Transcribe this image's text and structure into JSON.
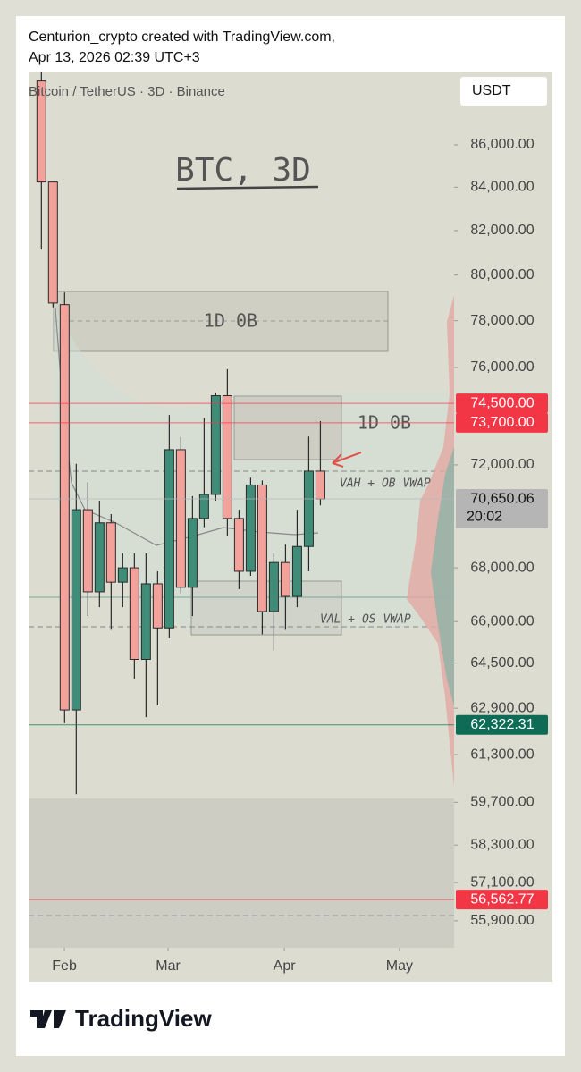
{
  "header": {
    "author_line": "Centurion_crypto created with TradingView.com,",
    "date_line": "Apr 13, 2026 02:39 UTC+3"
  },
  "footer": {
    "brand": "TradingView"
  },
  "chart_data": {
    "type": "candlestick",
    "title": "BTC, 3D",
    "symbol": "Bitcoin / TetherUS · 3D · Binance",
    "currency": "USDT",
    "annotations": [
      "1D 0B",
      "1D 0B",
      "VAH + OB VWAP",
      "VAL + OS VWAP"
    ],
    "x": [
      0,
      1,
      2,
      3,
      4,
      5,
      6,
      7,
      8,
      9,
      10,
      11,
      12,
      13,
      14,
      15,
      16,
      17,
      18,
      19,
      20,
      21,
      22,
      23,
      24
    ],
    "open": [
      89100,
      84240,
      78700,
      62840,
      70230,
      67100,
      69720,
      67460,
      68000,
      64630,
      67400,
      65770,
      72610,
      67270,
      69890,
      70830,
      74820,
      69890,
      67870,
      71200,
      66370,
      68200,
      66930,
      68810,
      71750
    ],
    "high": [
      89570,
      84240,
      79230,
      72040,
      71310,
      70580,
      70060,
      68550,
      68550,
      68550,
      67870,
      74020,
      73140,
      70760,
      73900,
      74930,
      75930,
      70230,
      71490,
      71380,
      68550,
      68880,
      70230,
      73140,
      73770
    ],
    "low": [
      81140,
      78580,
      62380,
      59970,
      66200,
      66530,
      65700,
      66530,
      63930,
      62590,
      63000,
      65390,
      67030,
      66200,
      69550,
      70580,
      69200,
      67200,
      67700,
      65540,
      64940,
      65700,
      66530,
      67870,
      70400
    ],
    "close": [
      84240,
      78770,
      62840,
      70230,
      67100,
      69720,
      67460,
      68000,
      64630,
      67400,
      65770,
      72610,
      67270,
      69890,
      70830,
      74820,
      69890,
      67870,
      71200,
      66370,
      68200,
      66930,
      68810,
      71750,
      70650.06
    ],
    "up_color": "#3f8c78",
    "down_color": "#f2a19b",
    "xlim": [
      -1.1,
      35.5
    ],
    "xticks": [
      {
        "value": 1.98,
        "label": "Feb"
      },
      {
        "value": 10.9,
        "label": "Mar"
      },
      {
        "value": 20.9,
        "label": "Apr"
      },
      {
        "value": 30.8,
        "label": "May"
      }
    ],
    "log_scale": true,
    "ylim": [
      55070,
      89570
    ],
    "yticks": [
      {
        "value": 86000,
        "label": "86,000.00"
      },
      {
        "value": 84000,
        "label": "84,000.00"
      },
      {
        "value": 82000,
        "label": "82,000.00"
      },
      {
        "value": 80000,
        "label": "80,000.00"
      },
      {
        "value": 78000,
        "label": "78,000.00"
      },
      {
        "value": 76000,
        "label": "76,000.00"
      },
      {
        "value": 72000,
        "label": "72,000.00"
      },
      {
        "value": 68000,
        "label": "68,000.00"
      },
      {
        "value": 66000,
        "label": "66,000.00"
      },
      {
        "value": 64500,
        "label": "64,500.00"
      },
      {
        "value": 62900,
        "label": "62,900.00"
      },
      {
        "value": 61300,
        "label": "61,300.00"
      },
      {
        "value": 59700,
        "label": "59,700.00"
      },
      {
        "value": 58300,
        "label": "58,300.00"
      },
      {
        "value": 57100,
        "label": "57,100.00"
      },
      {
        "value": 55900,
        "label": "55,900.00"
      }
    ],
    "price_markers": {
      "values": [
        74500,
        73700,
        70650.06,
        62322.31,
        56562.77
      ],
      "value_labels": [
        "74,500.00",
        "73,700.00",
        "70,650.06",
        "62,322.31",
        "56,562.77"
      ],
      "colors": [
        "#f23645",
        "#f23645",
        "#b5b5b5",
        "#0e6b55",
        "#f23645"
      ]
    },
    "countdown": "20:02"
  }
}
